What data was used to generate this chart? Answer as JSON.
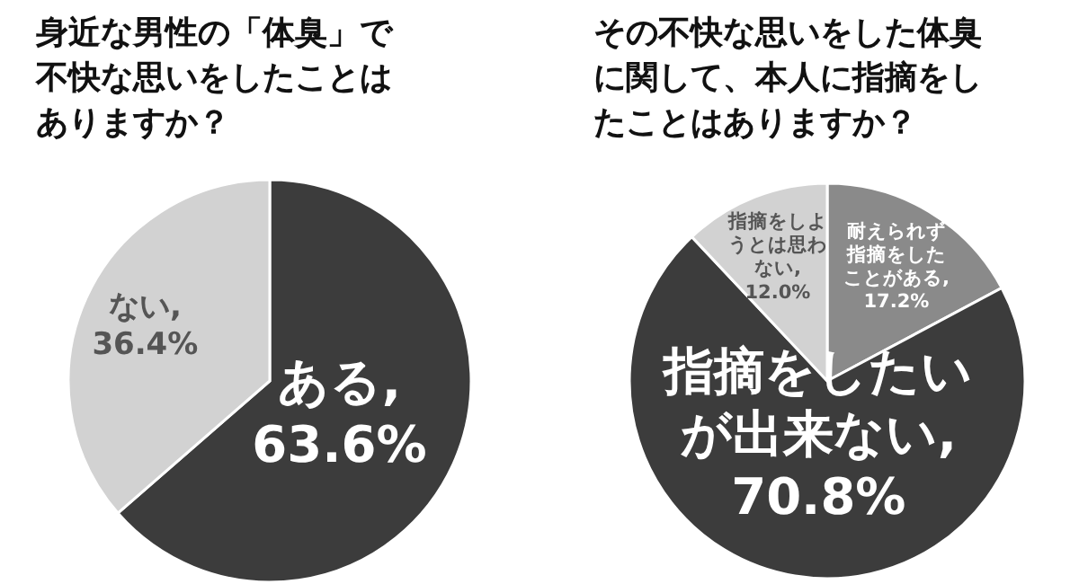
{
  "chart_data": [
    {
      "type": "pie",
      "title": "身近な男性の「体臭」で不快な思いをしたことはありますか？",
      "categories": [
        "ある",
        "ない"
      ],
      "values": [
        63.6,
        36.4
      ],
      "colors": [
        "#3c3c3c",
        "#d2d2d2"
      ],
      "value_labels": [
        ",\n63.6%",
        ",\n36.4%"
      ]
    },
    {
      "type": "pie",
      "title": "その不快な思いをした体臭に関して、本人に指摘をしたことはありますか？",
      "categories": [
        "耐えられず指摘をしたことがある",
        "指摘をしたいが出来ない",
        "指摘をしようとは思わない"
      ],
      "values": [
        17.2,
        70.8,
        12.0
      ],
      "colors": [
        "#8a8a8a",
        "#3c3c3c",
        "#d2d2d2"
      ],
      "value_labels": [
        ",\n17.2%",
        ",\n70.8%",
        ",\n12.0%"
      ]
    }
  ]
}
